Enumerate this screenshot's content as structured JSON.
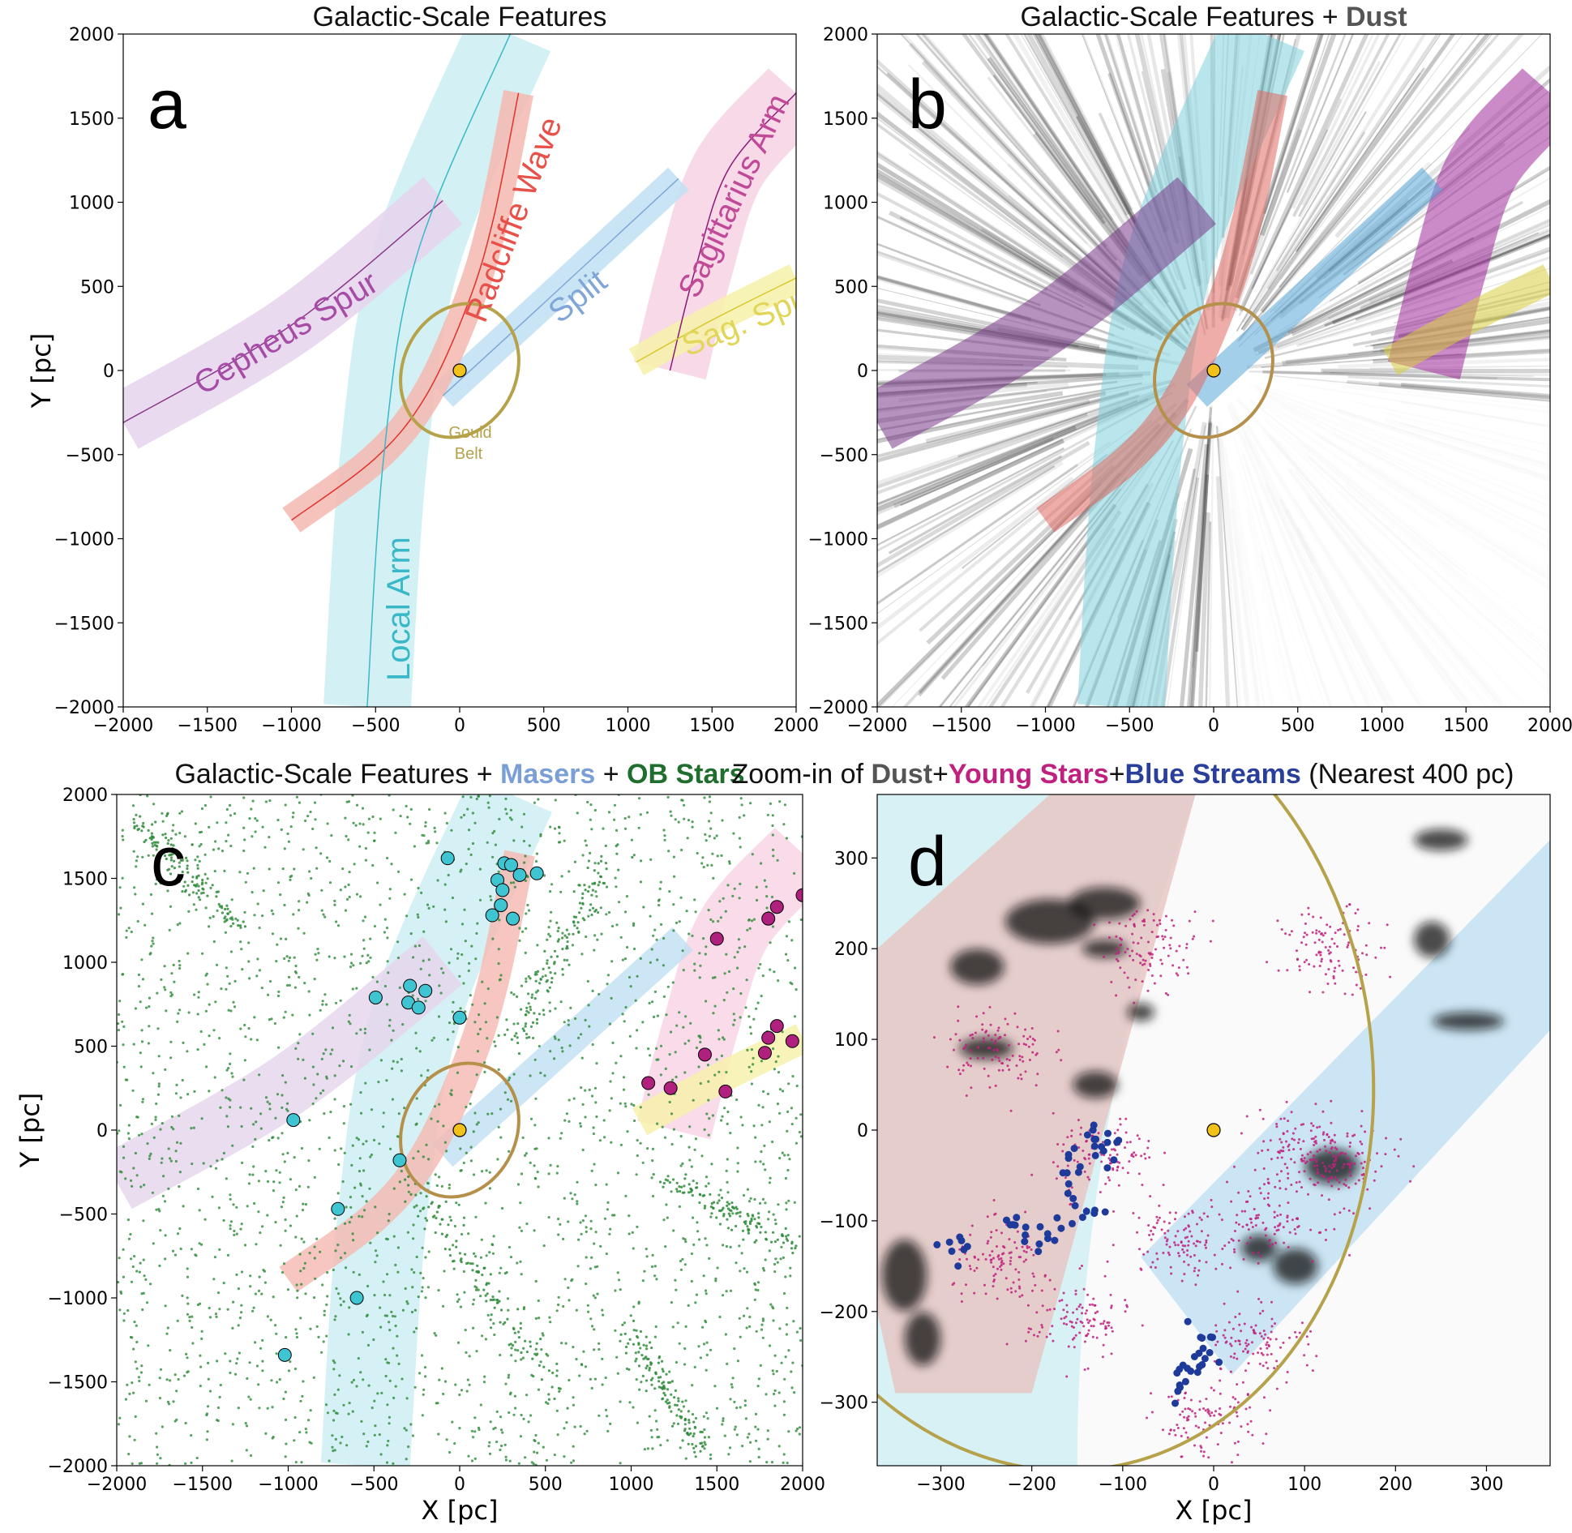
{
  "chart_data": [
    {
      "panel": "a",
      "type": "scatter",
      "title": "Galactic-Scale Features",
      "xlabel": "",
      "ylabel": "Y [pc]",
      "xlim": [
        -2000,
        2000
      ],
      "ylim": [
        -2000,
        2000
      ],
      "xticks": [
        "−2000",
        "−1500",
        "−1000",
        "−500",
        "0",
        "500",
        "1000",
        "1500",
        "2000"
      ],
      "yticks": [
        "2000",
        "1500",
        "1000",
        "500",
        "0",
        "−500",
        "−1000",
        "−1500",
        "−2000"
      ],
      "features": [
        {
          "name": "Cepheus Spur",
          "color": "#8b3a8b",
          "points": [
            [
              -2000,
              -310
            ],
            [
              -1000,
              270
            ],
            [
              -100,
              1010
            ]
          ]
        },
        {
          "name": "Radcliffe Wave",
          "color": "#e0322a",
          "points": [
            [
              -1000,
              -890
            ],
            [
              -500,
              -520
            ],
            [
              -200,
              -150
            ],
            [
              50,
              400
            ],
            [
              200,
              900
            ],
            [
              350,
              1650
            ]
          ]
        },
        {
          "name": "Split",
          "color": "#7fa6d6",
          "points": [
            [
              -100,
              -150
            ],
            [
              500,
              400
            ],
            [
              1300,
              1140
            ]
          ]
        },
        {
          "name": "Sagittarius Arm",
          "color": "#8b1a7a",
          "points": [
            [
              1250,
              0
            ],
            [
              1400,
              600
            ],
            [
              1600,
              1200
            ],
            [
              2000,
              1650
            ]
          ]
        },
        {
          "name": "Sag. Spur",
          "color": "#d6c830",
          "points": [
            [
              1050,
              50
            ],
            [
              1500,
              300
            ],
            [
              2000,
              550
            ]
          ]
        },
        {
          "name": "Local Arm",
          "color": "#3ab8c8",
          "points": [
            [
              -550,
              -2000
            ],
            [
              -450,
              -500
            ],
            [
              -250,
              700
            ],
            [
              300,
              2000
            ]
          ]
        }
      ],
      "annotations": [
        "Gould",
        "Belt"
      ],
      "sun": [
        0,
        0
      ]
    },
    {
      "panel": "b",
      "type": "heatmap",
      "title_main": "Galactic-Scale Features + ",
      "title_bold": "Dust",
      "xlim": [
        -2000,
        2000
      ],
      "ylim": [
        -2000,
        2000
      ],
      "xticks": [
        "−2000",
        "−1500",
        "−1000",
        "−500",
        "0",
        "500",
        "1000",
        "1500",
        "2000"
      ],
      "yticks": [
        "2000",
        "1500",
        "1000",
        "500",
        "0",
        "−500",
        "−1000",
        "−1500",
        "−2000"
      ]
    },
    {
      "panel": "c",
      "type": "scatter",
      "title_main": "Galactic-Scale Features + ",
      "title_masers": "Masers",
      "title_plus": " + ",
      "title_ob": "OB Stars",
      "xlabel": "X [pc]",
      "ylabel": "Y [pc]",
      "xlim": [
        -2000,
        2000
      ],
      "ylim": [
        -2000,
        2000
      ],
      "xticks": [
        "−2000",
        "−1500",
        "−1000",
        "−500",
        "0",
        "500",
        "1000",
        "1500",
        "2000"
      ],
      "yticks": [
        "2000",
        "1500",
        "1000",
        "500",
        "0",
        "−500",
        "−1000",
        "−1500",
        "−2000"
      ],
      "masers_cyan": [
        [
          -70,
          1620
        ],
        [
          260,
          1590
        ],
        [
          300,
          1580
        ],
        [
          220,
          1490
        ],
        [
          350,
          1520
        ],
        [
          450,
          1530
        ],
        [
          250,
          1430
        ],
        [
          240,
          1340
        ],
        [
          190,
          1280
        ],
        [
          310,
          1260
        ],
        [
          -290,
          860
        ],
        [
          -200,
          830
        ],
        [
          -300,
          760
        ],
        [
          -240,
          730
        ],
        [
          -490,
          790
        ],
        [
          0,
          670
        ],
        [
          -970,
          60
        ],
        [
          -350,
          -180
        ],
        [
          -710,
          -470
        ],
        [
          -600,
          -1000
        ],
        [
          -1020,
          -1340
        ]
      ],
      "masers_magenta": [
        [
          1850,
          1330
        ],
        [
          2000,
          1400
        ],
        [
          1800,
          1260
        ],
        [
          1500,
          1140
        ],
        [
          1850,
          620
        ],
        [
          1940,
          530
        ],
        [
          1800,
          550
        ],
        [
          1780,
          460
        ],
        [
          1430,
          450
        ],
        [
          1100,
          280
        ],
        [
          1230,
          250
        ],
        [
          1550,
          230
        ]
      ],
      "ob_stars_note": "Dense field of green OB-star points across the full 4 kpc square"
    },
    {
      "panel": "d",
      "type": "scatter",
      "title_a": "Zoom-in of ",
      "title_dust": "Dust",
      "title_b": "+",
      "title_young": "Young Stars",
      "title_c": "+",
      "title_blue": "Blue Streams",
      "title_d": " (Nearest 400 pc)",
      "xlabel": "X [pc]",
      "xlim": [
        -370,
        370
      ],
      "ylim": [
        -370,
        370
      ],
      "xticks": [
        "−300",
        "−200",
        "−100",
        "0",
        "100",
        "200",
        "300"
      ],
      "yticks": [
        "300",
        "200",
        "100",
        "0",
        "−100",
        "−200",
        "−300"
      ],
      "young_star_clusters": [
        [
          -240,
          90
        ],
        [
          -120,
          -30
        ],
        [
          -230,
          -150
        ],
        [
          -40,
          -120
        ],
        [
          60,
          -100
        ],
        [
          140,
          -40
        ],
        [
          100,
          -20
        ],
        [
          -150,
          -210
        ],
        [
          -10,
          -320
        ],
        [
          130,
          200
        ],
        [
          -70,
          200
        ],
        [
          50,
          -230
        ]
      ],
      "blue_streams": [
        [
          -160,
          -50
        ],
        [
          -140,
          -90
        ],
        [
          -120,
          -30
        ],
        [
          -180,
          -120
        ],
        [
          -220,
          -100
        ],
        [
          -280,
          -130
        ],
        [
          -130,
          -10
        ],
        [
          -20,
          -250
        ],
        [
          -30,
          -280
        ],
        [
          -10,
          -230
        ]
      ],
      "sun": [
        0,
        0
      ]
    }
  ],
  "labels": {
    "panel_a": "a",
    "panel_b": "b",
    "panel_c": "c",
    "panel_d": "d",
    "cepheus": "Cepheus Spur",
    "radcliffe": "Radcliffe Wave",
    "split": "Split",
    "sagittarius": "Sagittarius Arm",
    "sag_spur": "Sag. Spur",
    "local_arm": "Local Arm",
    "gould1": "Gould",
    "gould2": "Belt"
  },
  "colors": {
    "local_arm_band": "#cbeef2",
    "radcliffe_band": "#f5b8b0",
    "cepheus_band": "#e6d4ec",
    "split_band": "#bfe0f3",
    "sag_band": "#f7d2e3",
    "sagspur_band": "#f6f1a8",
    "gould": "#b5a24a",
    "sun": "#f2c21a",
    "ob": "#2e8b3a",
    "maser_cyan": "#3fc4d2",
    "maser_magenta": "#b0207e",
    "young": "#c0207e",
    "stream": "#1e3a9a"
  }
}
